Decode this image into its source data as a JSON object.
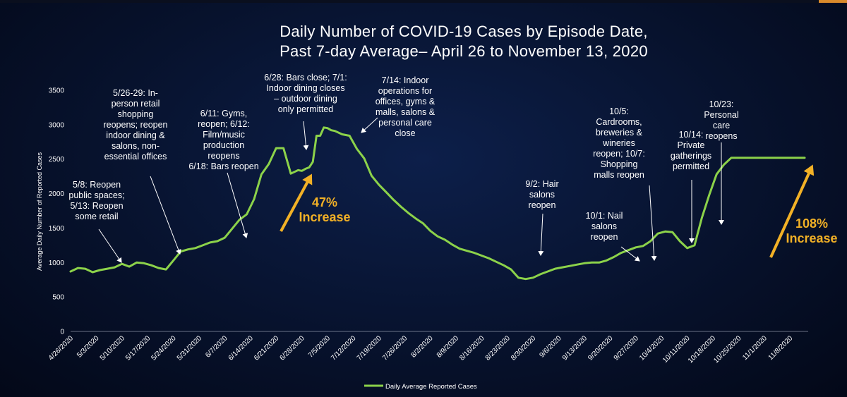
{
  "chart_data": {
    "type": "line",
    "title_lines": [
      "Daily Number of COVID-19 Cases by Episode Date,",
      "Past 7-day Average– April 26 to November 13, 2020"
    ],
    "ylabel": "Average Daily Number of Reported Cases",
    "xlabel": "",
    "ylim": [
      0,
      3500
    ],
    "y_ticks": [
      "0",
      "500",
      "1000",
      "1500",
      "2000",
      "2500",
      "3000",
      "3500"
    ],
    "x_ticks": [
      "4/26/2020",
      "5/3/2020",
      "5/10/2020",
      "5/17/2020",
      "5/24/2020",
      "5/31/2020",
      "6/7/2020",
      "6/14/2020",
      "6/21/2020",
      "6/28/2020",
      "7/5/2020",
      "7/12/2020",
      "7/19/2020",
      "7/26/2020",
      "8/2/2020",
      "8/9/2020",
      "8/16/2020",
      "8/23/2020",
      "8/30/2020",
      "9/6/2020",
      "9/13/2020",
      "9/20/2020",
      "9/27/2020",
      "10/4/2020",
      "10/11/2020",
      "10/18/2020",
      "10/25/2020",
      "11/1/2020",
      "11/8/2020"
    ],
    "series": [
      {
        "name": "Daily Average Reported Cases",
        "color": "#8cd24a",
        "x_day": [
          0,
          2,
          4,
          6,
          8,
          10,
          12,
          14,
          16,
          18,
          20,
          22,
          24,
          26,
          28,
          30,
          32,
          34,
          36,
          38,
          40,
          42,
          44,
          46,
          48,
          50,
          52,
          54,
          56,
          58,
          60,
          62,
          63,
          64,
          65,
          66,
          67,
          68,
          69,
          70,
          71,
          72,
          74,
          76,
          78,
          80,
          82,
          84,
          86,
          88,
          90,
          92,
          94,
          96,
          98,
          100,
          102,
          104,
          106,
          108,
          110,
          112,
          114,
          116,
          118,
          120,
          122,
          124,
          126,
          128,
          130,
          132,
          134,
          136,
          138,
          140,
          142,
          144,
          146,
          148,
          150,
          152,
          154,
          156,
          158,
          160,
          162,
          164,
          166,
          168,
          170,
          172,
          174,
          176,
          178,
          180,
          182,
          184,
          186,
          188,
          190,
          192,
          194,
          196,
          198,
          200
        ],
        "values": [
          870,
          920,
          910,
          860,
          890,
          910,
          930,
          980,
          940,
          1000,
          990,
          960,
          920,
          900,
          1030,
          1160,
          1190,
          1210,
          1250,
          1290,
          1310,
          1360,
          1490,
          1620,
          1700,
          1920,
          2280,
          2430,
          2660,
          2660,
          2290,
          2340,
          2330,
          2360,
          2380,
          2460,
          2840,
          2840,
          2960,
          2950,
          2920,
          2910,
          2860,
          2840,
          2650,
          2510,
          2260,
          2130,
          2020,
          1910,
          1810,
          1720,
          1640,
          1570,
          1460,
          1380,
          1330,
          1260,
          1200,
          1170,
          1140,
          1100,
          1060,
          1010,
          960,
          900,
          780,
          760,
          780,
          830,
          870,
          910,
          930,
          950,
          970,
          990,
          1000,
          1000,
          1030,
          1080,
          1140,
          1180,
          1220,
          1240,
          1310,
          1420,
          1450,
          1440,
          1310,
          1210,
          1250,
          1650,
          1980,
          2280,
          2420,
          2520,
          2520,
          2520,
          2520,
          2520,
          2520,
          2520,
          2520,
          2520,
          2520,
          2520
        ]
      }
    ],
    "annotations": [
      {
        "lines": [
          "5/8: Reopen",
          "public spaces;",
          "5/13: Reopen",
          "some retail"
        ]
      },
      {
        "lines": [
          "5/26-29: In-",
          "person retail",
          "shopping",
          "reopens; reopen",
          "indoor dining &",
          "salons, non-",
          "essential offices"
        ]
      },
      {
        "lines": [
          "6/11: Gyms,",
          "reopen; 6/12:",
          "Film/music",
          "production",
          "reopens",
          "6/18: Bars reopen"
        ]
      },
      {
        "lines": [
          "6/28: Bars close; 7/1:",
          "Indoor dining closes",
          "– outdoor dining",
          "only permitted"
        ]
      },
      {
        "lines": [
          "7/14: Indoor",
          "operations for",
          "offices, gyms &",
          "malls, salons &",
          "personal care",
          "close"
        ]
      },
      {
        "lines": [
          "9/2: Hair",
          "salons",
          "reopen"
        ]
      },
      {
        "lines": [
          "10/1: Nail",
          "salons",
          "reopen"
        ]
      },
      {
        "lines": [
          "10/5:",
          "Cardrooms,",
          "breweries &",
          "wineries",
          "reopen; 10/7:",
          "Shopping",
          "malls reopen"
        ]
      },
      {
        "lines": [
          "10/14:",
          "Private",
          "gatherings",
          "permitted"
        ]
      },
      {
        "lines": [
          "10/23:",
          "Personal",
          "care",
          "reopens"
        ]
      }
    ],
    "callouts": [
      {
        "lines": [
          "47%",
          "Increase"
        ],
        "color": "#f2b126"
      },
      {
        "lines": [
          "108%",
          "Increase"
        ],
        "color": "#f2b126"
      }
    ],
    "legend": {
      "position": "bottom-center",
      "label": "Daily Average Reported Cases"
    }
  }
}
